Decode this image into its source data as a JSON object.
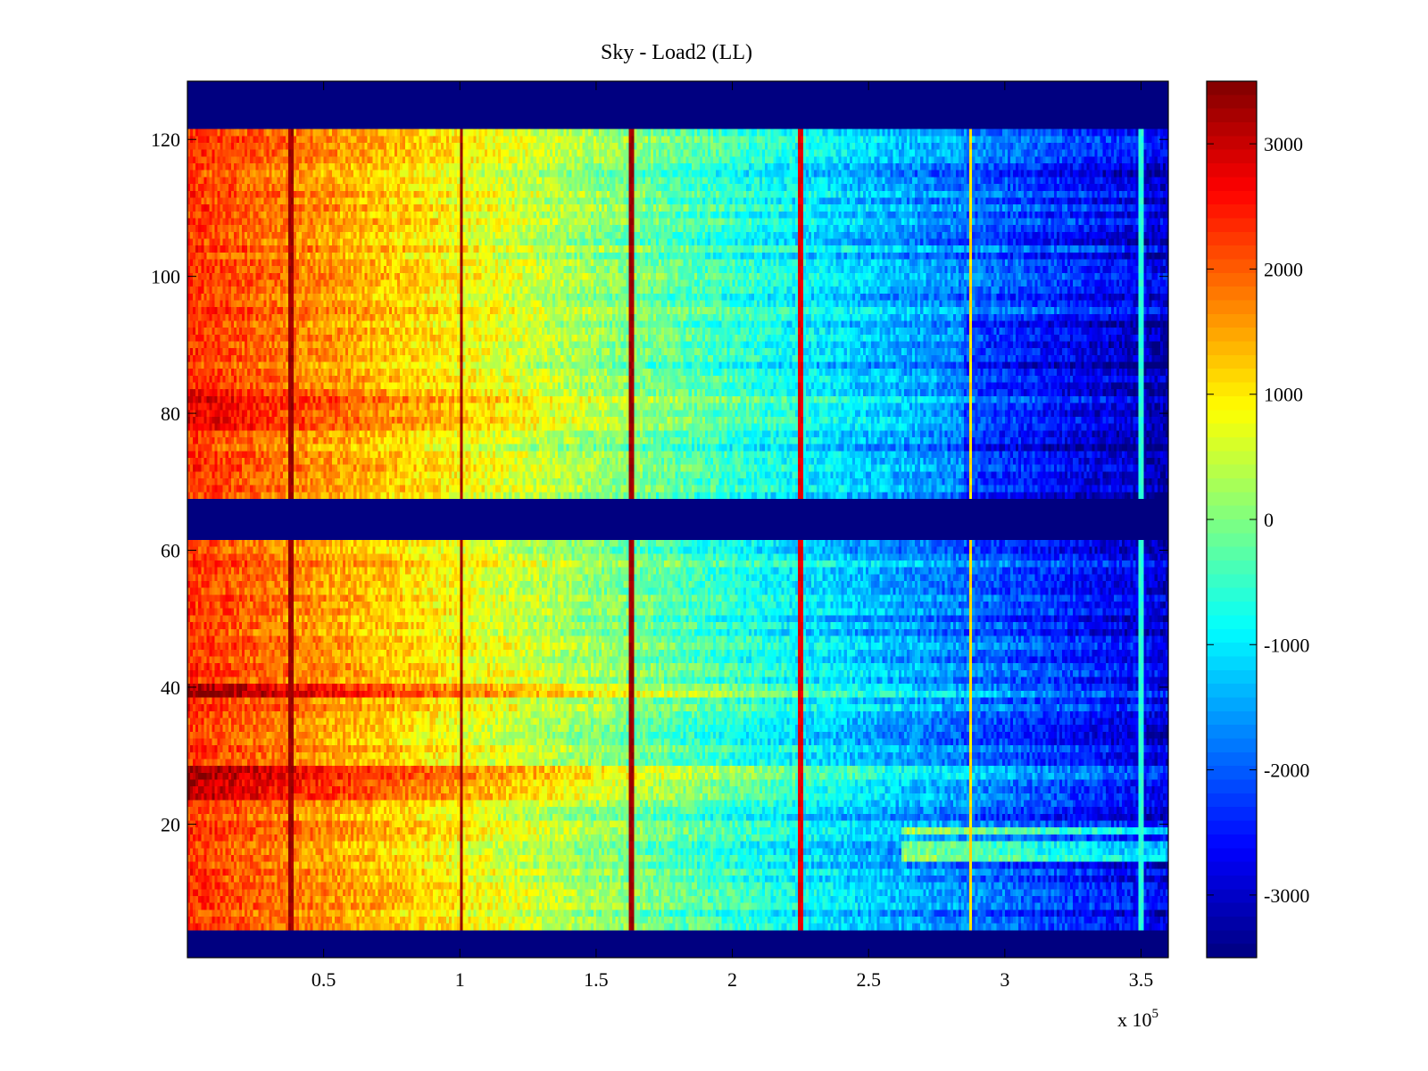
{
  "chart_data": {
    "type": "heatmap",
    "title": "Sky - Load2 (LL)",
    "xlabel": "",
    "ylabel": "",
    "x_exponent_label": "x 10",
    "x_exponent_sup": "5",
    "xlim": [
      0,
      360000
    ],
    "ylim": [
      0.5,
      128.5
    ],
    "xticks": [
      {
        "value": 50000,
        "label": "0.5"
      },
      {
        "value": 100000,
        "label": "1"
      },
      {
        "value": 150000,
        "label": "1.5"
      },
      {
        "value": 200000,
        "label": "2"
      },
      {
        "value": 250000,
        "label": "2.5"
      },
      {
        "value": 300000,
        "label": "3"
      },
      {
        "value": 350000,
        "label": "3.5"
      }
    ],
    "yticks": [
      {
        "value": 20,
        "label": "20"
      },
      {
        "value": 40,
        "label": "40"
      },
      {
        "value": 60,
        "label": "60"
      },
      {
        "value": 80,
        "label": "80"
      },
      {
        "value": 100,
        "label": "100"
      },
      {
        "value": 120,
        "label": "120"
      }
    ],
    "colorbar": {
      "colormap": "jet",
      "clim": [
        -3500,
        3500
      ],
      "ticks": [
        {
          "value": 3000,
          "label": "3000"
        },
        {
          "value": 2000,
          "label": "2000"
        },
        {
          "value": 1000,
          "label": "1000"
        },
        {
          "value": 0,
          "label": "0"
        },
        {
          "value": -1000,
          "label": "-1000"
        },
        {
          "value": -2000,
          "label": "-2000"
        },
        {
          "value": -3000,
          "label": "-3000"
        }
      ]
    },
    "description_of_field": {
      "gradient_x": [
        0,
        360000
      ],
      "gradient_values": [
        2300,
        -2900
      ],
      "masked_row_ranges": [
        [
          0.5,
          4
        ],
        [
          62,
          67
        ],
        [
          122,
          128.5
        ]
      ],
      "masked_value": -3500,
      "spike_lines": [
        {
          "x": 38000,
          "value": 3300
        },
        {
          "x": 100500,
          "value": 3300
        },
        {
          "x": 163000,
          "value": 3300
        },
        {
          "x": 225000,
          "value": 2800
        },
        {
          "x": 287500,
          "value": 1100
        },
        {
          "x": 350000,
          "value": -600
        }
      ],
      "hot_rows": [
        [
          24,
          28,
          900
        ],
        [
          38.5,
          40,
          1100
        ],
        [
          78,
          83,
          500
        ]
      ],
      "cold_rows": [
        [
          15,
          17,
          1700
        ],
        [
          18.5,
          19.5,
          1500
        ]
      ]
    },
    "grid": false,
    "colors": {
      "background": "#ffffff",
      "mask": "#00008f"
    }
  }
}
